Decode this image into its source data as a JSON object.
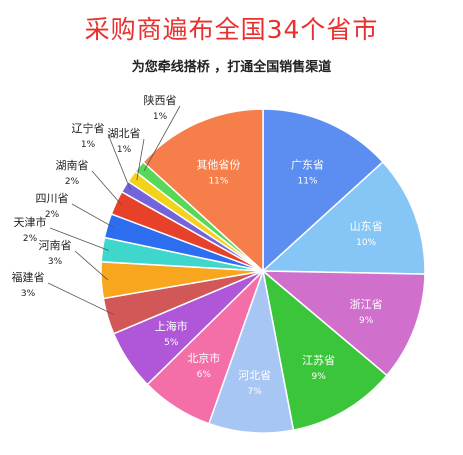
{
  "title": "采购商遍布全国34个省市",
  "subtitle": "为您牵线搭桥 ，打通全国销售渠道",
  "chart_data": {
    "type": "pie",
    "slices": [
      {
        "name": "广东省",
        "label": "11%",
        "value": 11,
        "color": "#5b8ef0",
        "inside": true
      },
      {
        "name": "山东省",
        "label": "10%",
        "value": 10,
        "color": "#86c6f7",
        "inside": true
      },
      {
        "name": "浙江省",
        "label": "9%",
        "value": 9,
        "color": "#d06fcc",
        "inside": true
      },
      {
        "name": "江苏省",
        "label": "9%",
        "value": 9,
        "color": "#3bc53b",
        "inside": true
      },
      {
        "name": "河北省",
        "label": "7%",
        "value": 7,
        "color": "#a7c6f4",
        "inside": true
      },
      {
        "name": "北京市",
        "label": "6%",
        "value": 6,
        "color": "#f46ea7",
        "inside": true
      },
      {
        "name": "上海市",
        "label": "5%",
        "value": 5,
        "color": "#b056d9",
        "inside": true
      },
      {
        "name": "福建省",
        "label": "3%",
        "value": 3,
        "color": "#d25757",
        "inside": false
      },
      {
        "name": "河南省",
        "label": "3%",
        "value": 3,
        "color": "#f8a61d",
        "inside": false
      },
      {
        "name": "天津市",
        "label": "2%",
        "value": 2,
        "color": "#3fd6cc",
        "inside": false
      },
      {
        "name": "四川省",
        "label": "2%",
        "value": 2,
        "color": "#2d6df0",
        "inside": false
      },
      {
        "name": "湖南省",
        "label": "2%",
        "value": 2,
        "color": "#e8412a",
        "inside": false
      },
      {
        "name": "辽宁省",
        "label": "1%",
        "value": 1,
        "color": "#7464dc",
        "inside": false
      },
      {
        "name": "湖北省",
        "label": "1%",
        "value": 1,
        "color": "#f3d21c",
        "inside": false
      },
      {
        "name": "陕西省",
        "label": "1%",
        "value": 1,
        "color": "#58d858",
        "inside": false
      },
      {
        "name": "其他省份",
        "label": "11%",
        "value": 11,
        "color": "#f57e4a",
        "inside": true
      }
    ]
  }
}
